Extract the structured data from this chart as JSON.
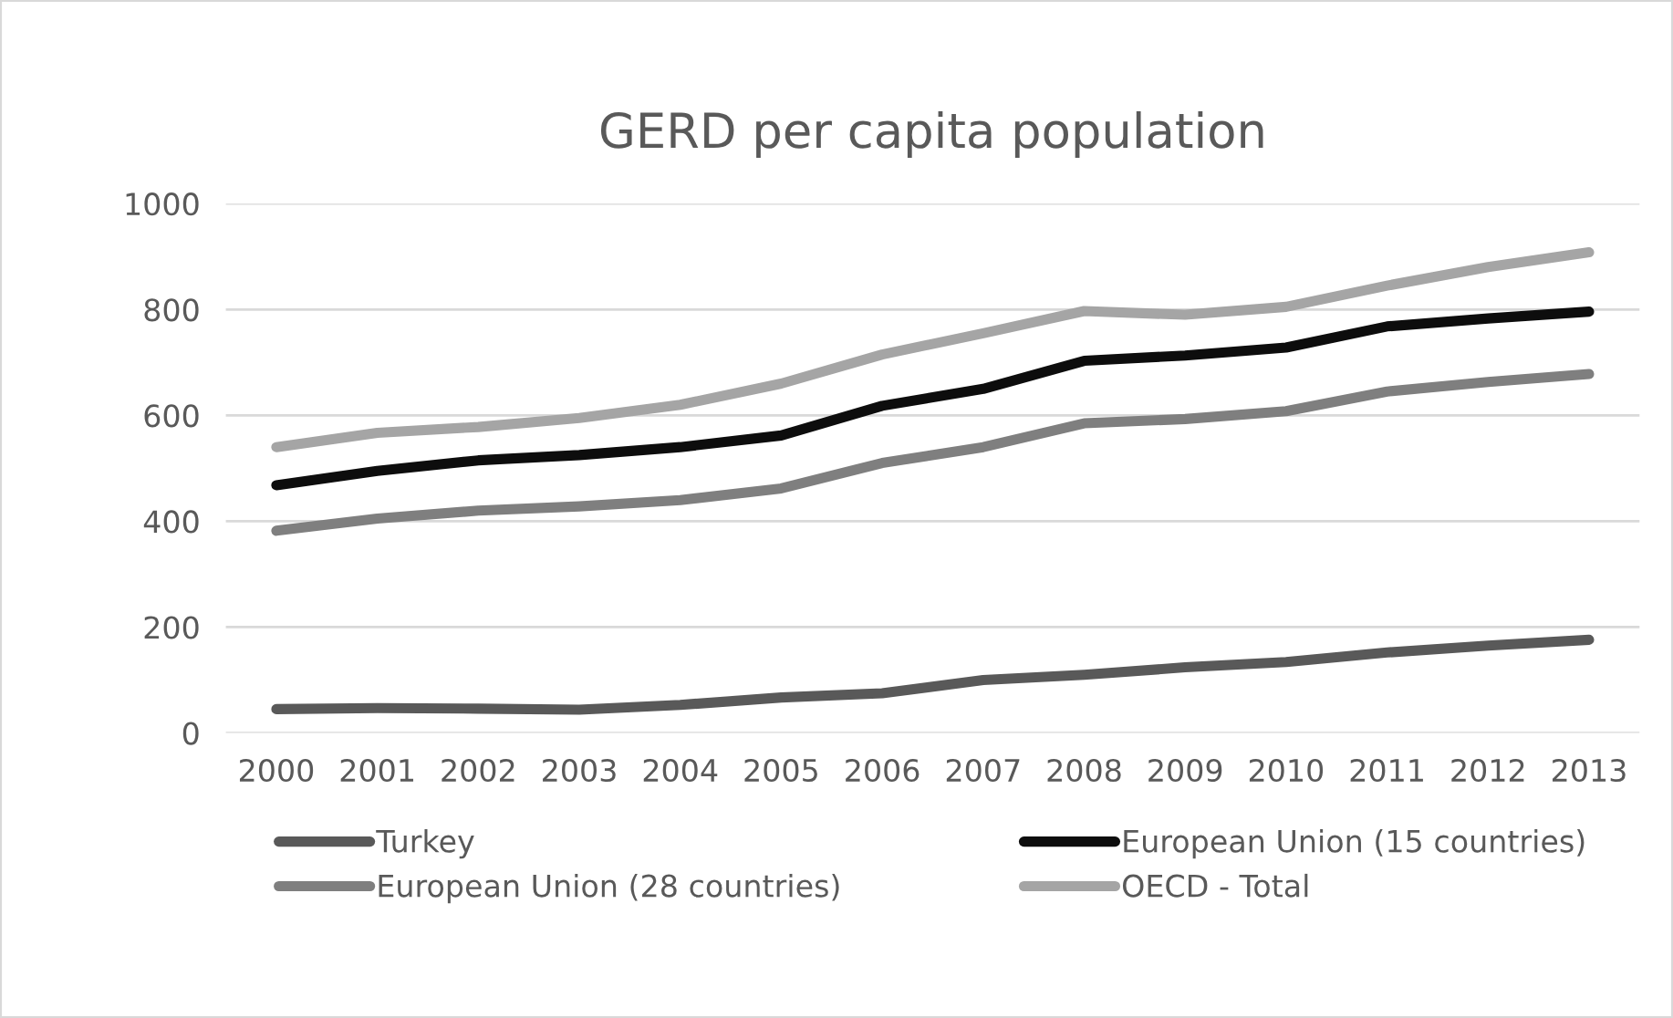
{
  "chart_data": {
    "type": "line",
    "title": "GERD per capita population",
    "categories": [
      "2000",
      "2001",
      "2002",
      "2003",
      "2004",
      "2005",
      "2006",
      "2007",
      "2008",
      "2009",
      "2010",
      "2011",
      "2012",
      "2013"
    ],
    "series": [
      {
        "name": "Turkey",
        "color": "#595959",
        "values": [
          45,
          47,
          46,
          44,
          53,
          67,
          75,
          100,
          110,
          124,
          134,
          152,
          165,
          176
        ]
      },
      {
        "name": "European Union (28 countries)",
        "color": "#7f7f7f",
        "values": [
          382,
          405,
          420,
          428,
          440,
          462,
          510,
          540,
          585,
          593,
          608,
          645,
          663,
          678
        ]
      },
      {
        "name": "European Union (15 countries)",
        "color": "#0d0d0d",
        "values": [
          468,
          495,
          515,
          525,
          540,
          562,
          618,
          650,
          703,
          713,
          728,
          768,
          783,
          796
        ]
      },
      {
        "name": "OECD - Total",
        "color": "#a5a5a5",
        "values": [
          540,
          567,
          578,
          595,
          620,
          660,
          715,
          755,
          797,
          790,
          805,
          845,
          880,
          908
        ]
      }
    ],
    "ylim": [
      0,
      1000
    ],
    "yticks": [
      0,
      200,
      400,
      600,
      800,
      1000
    ],
    "grid": "y",
    "legend": "bottom",
    "marker": "none",
    "line_style": "solid"
  }
}
